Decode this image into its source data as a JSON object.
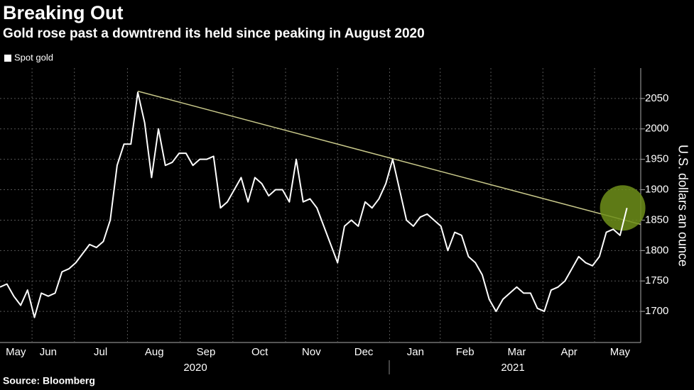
{
  "chart_data": {
    "type": "line",
    "title": "Breaking Out",
    "subtitle": "Gold rose past a downtrend its held since peaking in August 2020",
    "source": "Source: Bloomberg",
    "y_axis_label": "U.S. dollars an ounce",
    "years": [
      "2020",
      "2021"
    ],
    "series": [
      {
        "name": "Spot gold",
        "color": "#ffffff",
        "values": [
          1740,
          1745,
          1725,
          1710,
          1735,
          1690,
          1730,
          1725,
          1730,
          1765,
          1770,
          1780,
          1795,
          1810,
          1805,
          1815,
          1850,
          1940,
          1975,
          1975,
          2060,
          2010,
          1920,
          2000,
          1940,
          1945,
          1960,
          1960,
          1940,
          1950,
          1950,
          1955,
          1870,
          1880,
          1900,
          1920,
          1880,
          1920,
          1910,
          1890,
          1900,
          1900,
          1880,
          1950,
          1880,
          1885,
          1870,
          1840,
          1810,
          1780,
          1840,
          1850,
          1840,
          1880,
          1870,
          1885,
          1910,
          1950,
          1900,
          1850,
          1840,
          1855,
          1860,
          1850,
          1840,
          1800,
          1830,
          1825,
          1790,
          1780,
          1760,
          1720,
          1700,
          1720,
          1730,
          1740,
          1730,
          1730,
          1705,
          1700,
          1735,
          1740,
          1750,
          1770,
          1790,
          1780,
          1775,
          1790,
          1830,
          1835,
          1825,
          1870
        ]
      }
    ],
    "trendline": {
      "x": [
        20,
        93
      ],
      "y": [
        2062,
        1843
      ],
      "color": "#c8c88a"
    },
    "xlim": [
      0,
      93
    ],
    "xticks": [
      {
        "value": 2.3,
        "label": "May"
      },
      {
        "value": 7.0,
        "label": "Jun"
      },
      {
        "value": 14.6,
        "label": "Jul"
      },
      {
        "value": 22.4,
        "label": "Aug"
      },
      {
        "value": 29.9,
        "label": "Sep"
      },
      {
        "value": 37.7,
        "label": "Oct"
      },
      {
        "value": 45.2,
        "label": "Nov"
      },
      {
        "value": 52.8,
        "label": "Dec"
      },
      {
        "value": 60.3,
        "label": "Jan"
      },
      {
        "value": 67.5,
        "label": "Feb"
      },
      {
        "value": 75.0,
        "label": "Mar"
      },
      {
        "value": 82.6,
        "label": "Apr"
      },
      {
        "value": 90.0,
        "label": "May"
      }
    ],
    "ylim": [
      1650,
      2100
    ],
    "yticks": [
      1700,
      1750,
      1800,
      1850,
      1900,
      1950,
      2000,
      2050
    ],
    "grid": true
  }
}
